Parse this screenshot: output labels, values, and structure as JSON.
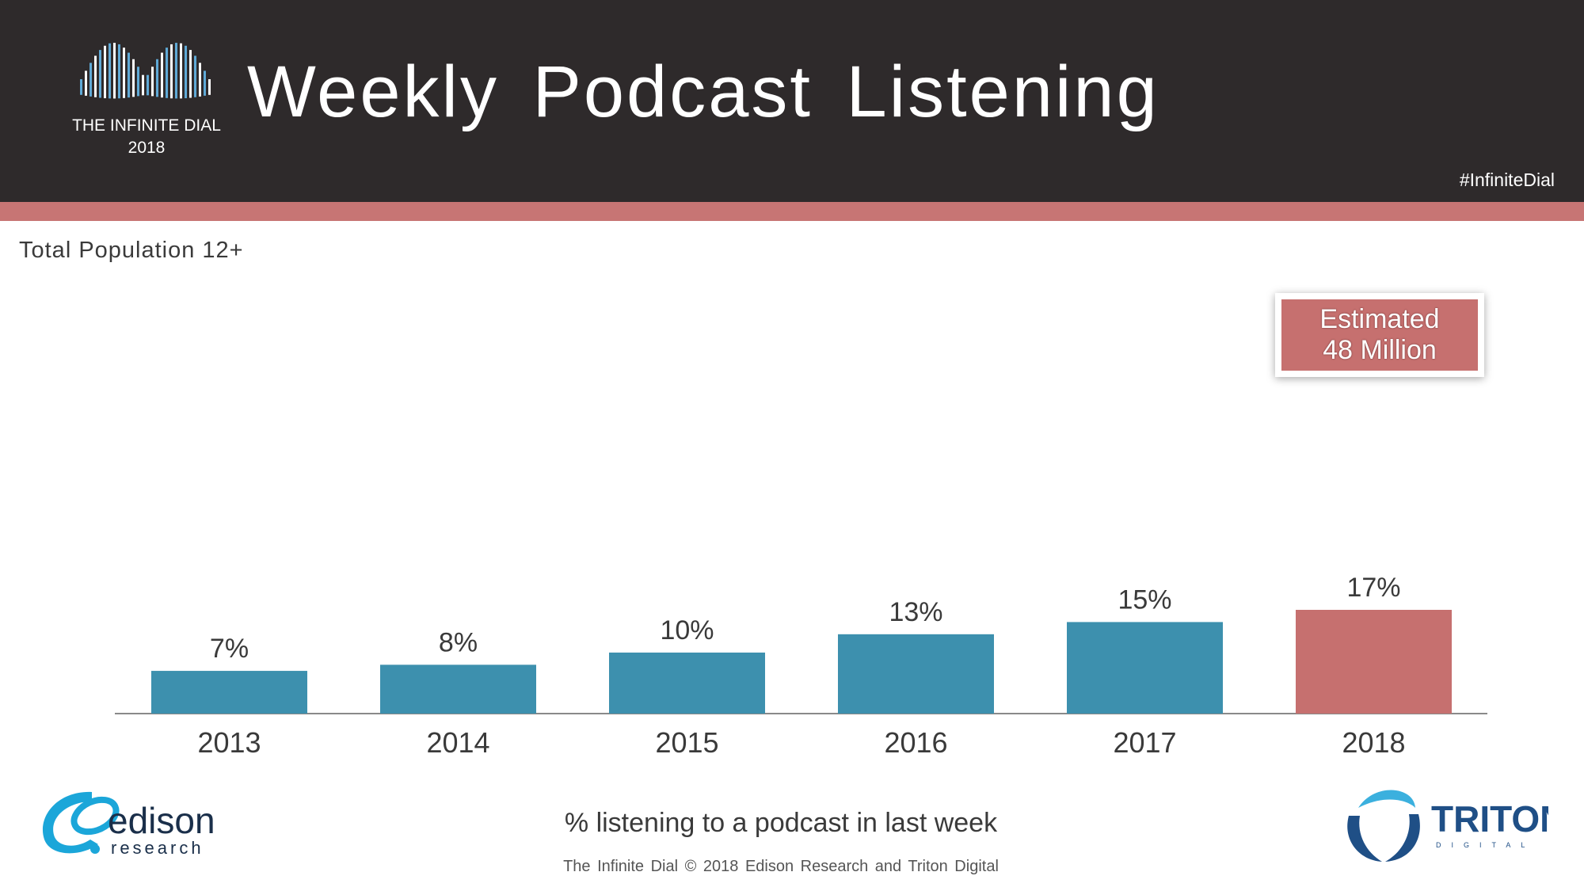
{
  "header": {
    "logo_brand": "THE INFINITE DIAL",
    "logo_year": "2018",
    "title": "Weekly Podcast Listening",
    "hashtag": "#InfiniteDial",
    "background_color": "#2e2a2b",
    "accent_color": "#c77574"
  },
  "subtitle": "Total Population 12+",
  "callout": {
    "line1": "Estimated",
    "line2": "48 Million"
  },
  "chart_data": {
    "type": "bar",
    "categories": [
      "2013",
      "2014",
      "2015",
      "2016",
      "2017",
      "2018"
    ],
    "values": [
      7,
      8,
      10,
      13,
      15,
      17
    ],
    "value_labels": [
      "7%",
      "8%",
      "10%",
      "13%",
      "15%",
      "17%"
    ],
    "colors": [
      "#3d90ae",
      "#3d90ae",
      "#3d90ae",
      "#3d90ae",
      "#3d90ae",
      "#c6706f"
    ],
    "xlabel": "% listening to a podcast in last week",
    "ylabel": "",
    "ylim": [
      0,
      17
    ],
    "grid": false
  },
  "footer": {
    "text": "The Infinite Dial   © 2018 Edison Research and Triton Digital",
    "edison_name": "edison",
    "edison_sub": "research",
    "triton_name": "TRITON",
    "triton_sub": "DIGITAL"
  }
}
